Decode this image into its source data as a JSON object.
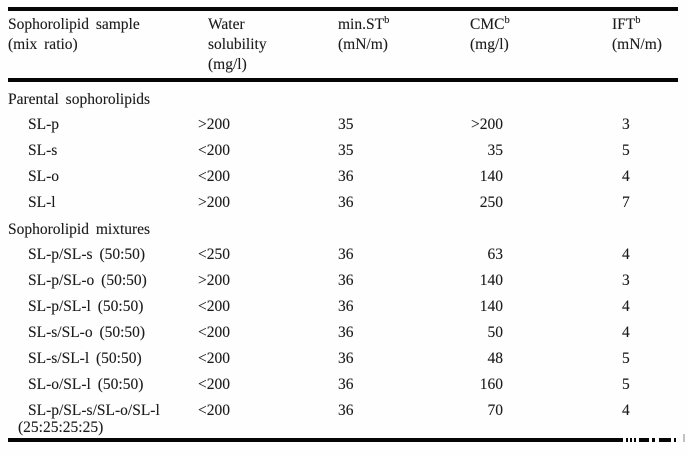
{
  "colors": {
    "background": "#ffffff",
    "text": "#1c1c1c",
    "rule": "#060606"
  },
  "table": {
    "header": {
      "sample": {
        "lines": [
          "Sophorolipid sample",
          "(mix ratio)"
        ]
      },
      "water_solubility": {
        "lines": [
          "Water",
          "solubility",
          "(mg/l)"
        ]
      },
      "min_st": {
        "name": "min.ST",
        "sup": "b",
        "unit": "(mN/m)"
      },
      "cmc": {
        "name": "CMC",
        "sup": "b",
        "unit": "(mg/l)"
      },
      "ift": {
        "name": "IFT",
        "sup": "b",
        "unit": "(mN/m)"
      }
    },
    "sections": [
      {
        "title": "Parental sophorolipids",
        "rows": [
          {
            "sample": "SL-p",
            "water": ">200",
            "min_st": "35",
            "cmc": ">200",
            "ift": "3"
          },
          {
            "sample": "SL-s",
            "water": "<200",
            "min_st": "35",
            "cmc": "35",
            "ift": "5"
          },
          {
            "sample": "SL-o",
            "water": "<200",
            "min_st": "36",
            "cmc": "140",
            "ift": "4"
          },
          {
            "sample": "SL-l",
            "water": ">200",
            "min_st": "36",
            "cmc": "250",
            "ift": "7"
          }
        ]
      },
      {
        "title": "Sophorolipid mixtures",
        "rows": [
          {
            "sample": "SL-p/SL-s (50:50)",
            "water": "<250",
            "min_st": "36",
            "cmc": "63",
            "ift": "4"
          },
          {
            "sample": "SL-p/SL-o (50:50)",
            "water": ">200",
            "min_st": "36",
            "cmc": "140",
            "ift": "3"
          },
          {
            "sample": "SL-p/SL-l (50:50)",
            "water": "<200",
            "min_st": "36",
            "cmc": "140",
            "ift": "4"
          },
          {
            "sample": "SL-s/SL-o (50:50)",
            "water": "<200",
            "min_st": "36",
            "cmc": "50",
            "ift": "4"
          },
          {
            "sample": "SL-s/SL-l (50:50)",
            "water": "<200",
            "min_st": "36",
            "cmc": "48",
            "ift": "5"
          },
          {
            "sample": "SL-o/SL-l (50:50)",
            "water": "<200",
            "min_st": "36",
            "cmc": "160",
            "ift": "5"
          },
          {
            "sample": "SL-p/SL-s/SL-o/SL-l",
            "sample_line2": "(25:25:25:25)",
            "water": "<200",
            "min_st": "36",
            "cmc": "70",
            "ift": "4"
          }
        ]
      }
    ]
  }
}
